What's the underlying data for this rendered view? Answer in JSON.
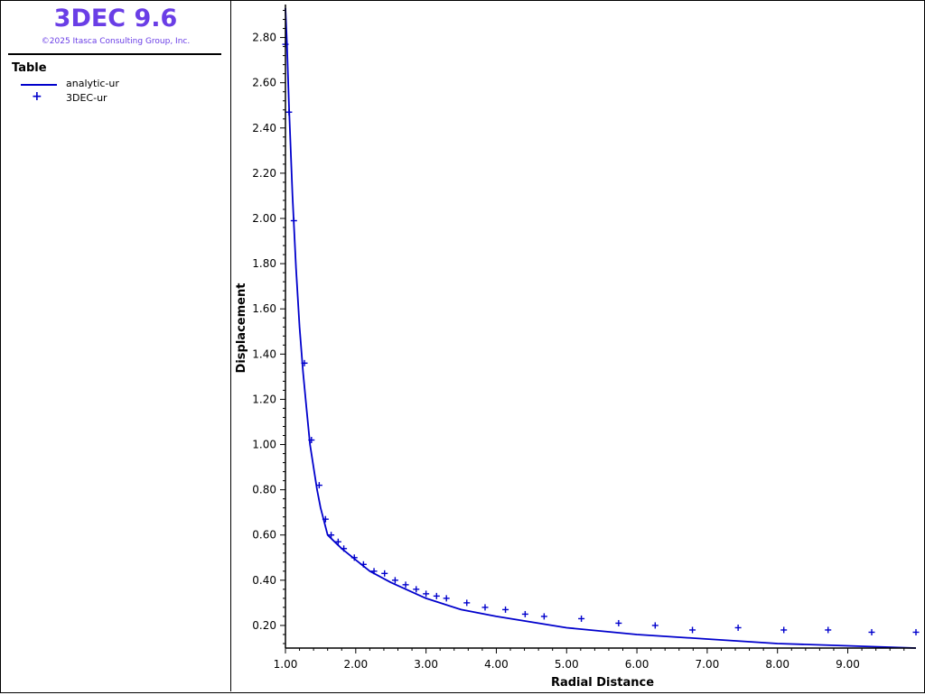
{
  "app": {
    "title": "3DEC 9.6",
    "copyright": "©2025 Itasca Consulting Group, Inc."
  },
  "legend": {
    "heading": "Table",
    "items": [
      {
        "label": "analytic-ur",
        "style": "line",
        "color": "#0000cc"
      },
      {
        "label": "3DEC-ur",
        "style": "plus",
        "color": "#0000cc"
      }
    ]
  },
  "chart_data": {
    "type": "line",
    "title": "",
    "xlabel": "Radial Distance",
    "ylabel": "Displacement",
    "xlim": [
      1.0,
      9.97
    ],
    "ylim": [
      0.1,
      2.93
    ],
    "x_ticks": [
      "1.00",
      "2.00",
      "3.00",
      "4.00",
      "5.00",
      "6.00",
      "7.00",
      "8.00",
      "9.00"
    ],
    "y_ticks": [
      "0.20",
      "0.40",
      "0.60",
      "0.80",
      "1.00",
      "1.20",
      "1.40",
      "1.60",
      "1.80",
      "2.00",
      "2.20",
      "2.40",
      "2.60",
      "2.80"
    ],
    "grid": false,
    "legend": "left panel",
    "series": [
      {
        "name": "analytic-ur",
        "style": "line",
        "color": "#0000cc",
        "x": [
          1.0,
          1.02,
          1.05,
          1.1,
          1.15,
          1.2,
          1.25,
          1.3,
          1.35,
          1.4,
          1.45,
          1.5,
          1.55,
          1.6,
          1.7,
          1.8,
          2.0,
          2.2,
          2.5,
          3.0,
          3.5,
          4.0,
          5.0,
          6.0,
          7.0,
          8.0,
          9.0,
          9.97
        ],
        "y": [
          2.93,
          2.78,
          2.5,
          2.1,
          1.78,
          1.52,
          1.32,
          1.16,
          1.0,
          0.9,
          0.8,
          0.72,
          0.66,
          0.6,
          0.57,
          0.54,
          0.49,
          0.44,
          0.39,
          0.32,
          0.27,
          0.24,
          0.19,
          0.16,
          0.14,
          0.12,
          0.11,
          0.1
        ]
      },
      {
        "name": "3DEC-ur",
        "style": "plus",
        "color": "#0000cc",
        "x": [
          1.0,
          1.05,
          1.12,
          1.27,
          1.37,
          1.48,
          1.57,
          1.65,
          1.75,
          1.83,
          1.98,
          2.11,
          2.26,
          2.41,
          2.56,
          2.71,
          2.86,
          3.0,
          3.15,
          3.29,
          3.58,
          3.84,
          4.13,
          4.41,
          4.68,
          5.21,
          5.74,
          6.26,
          6.79,
          7.44,
          8.09,
          8.72,
          9.34,
          9.97
        ],
        "y": [
          2.77,
          2.47,
          1.99,
          1.36,
          1.02,
          0.82,
          0.67,
          0.6,
          0.57,
          0.54,
          0.5,
          0.47,
          0.44,
          0.43,
          0.4,
          0.38,
          0.36,
          0.34,
          0.33,
          0.32,
          0.3,
          0.28,
          0.27,
          0.25,
          0.24,
          0.23,
          0.21,
          0.2,
          0.18,
          0.19,
          0.18,
          0.18,
          0.17,
          0.17
        ]
      }
    ]
  }
}
